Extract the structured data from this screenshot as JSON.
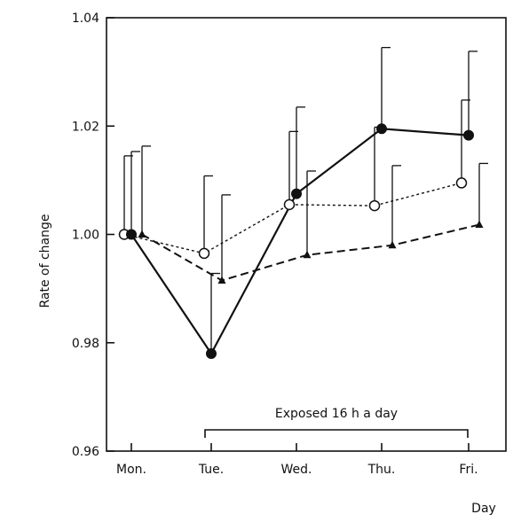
{
  "chart_data": {
    "type": "line",
    "title": "",
    "xlabel": "Day",
    "ylabel": "Rate of change",
    "categories": [
      "Mon.",
      "Tue.",
      "Wed.",
      "Thu.",
      "Fri."
    ],
    "ylim": [
      0.96,
      1.04
    ],
    "yticks": [
      "0.96",
      "0.98",
      "1.00",
      "1.02",
      "1.04"
    ],
    "grid": false,
    "series": [
      {
        "marker": "open-circle",
        "line": "dotted",
        "color": "#111111",
        "values": [
          1.0,
          0.9965,
          1.0055,
          1.0053,
          1.0095
        ],
        "error_upper": [
          1.0145,
          1.0108,
          1.019,
          1.0198,
          1.0248
        ]
      },
      {
        "marker": "filled-circle",
        "line": "solid",
        "color": "#111111",
        "values": [
          1.0,
          0.978,
          1.0075,
          1.0195,
          1.0183
        ],
        "error_upper": [
          1.0153,
          0.9928,
          1.0235,
          1.0345,
          1.0338
        ]
      },
      {
        "marker": "filled-triangle",
        "line": "dashed",
        "color": "#111111",
        "values": [
          1.0,
          0.9915,
          0.9962,
          0.998,
          1.0018
        ],
        "error_upper": [
          1.0163,
          1.0073,
          1.0117,
          1.0127,
          1.0131
        ]
      }
    ],
    "annotation": {
      "text": "Exposed 16 h a day",
      "from_category": "Tue.",
      "to_category": "Fri."
    }
  }
}
